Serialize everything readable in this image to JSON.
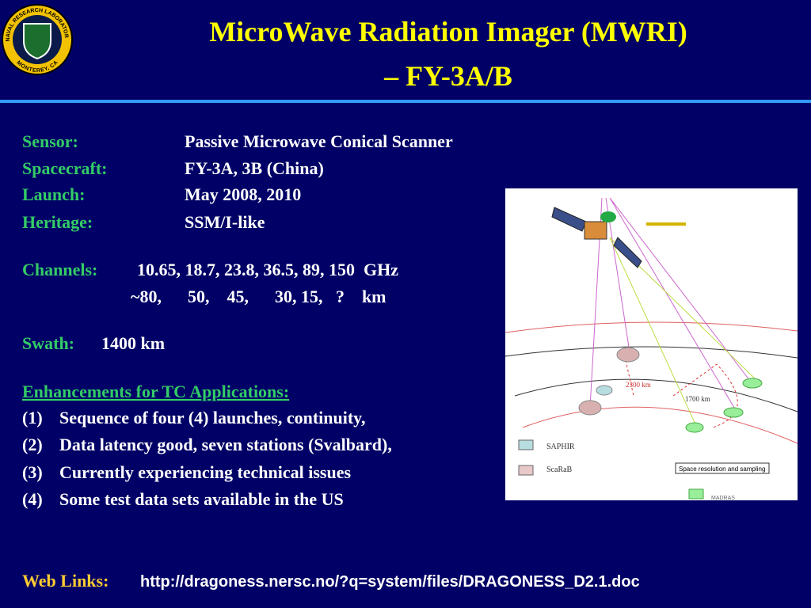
{
  "title": [
    "MicroWave Radiation Imager (MWRI)",
    "– FY-3A/B"
  ],
  "logo": {
    "top": "NAVAL RESEARCH LABORATORY",
    "bottom": "MONTEREY, CA"
  },
  "specs": [
    {
      "label": "Sensor:",
      "value": "Passive Microwave Conical Scanner"
    },
    {
      "label": "Spacecraft:",
      "value": "FY-3A, 3B (China)"
    },
    {
      "label": "Launch:",
      "value": "May 2008, 2010"
    },
    {
      "label": "Heritage:",
      "value": "SSM/I-like"
    }
  ],
  "channels": {
    "label": "Channels:",
    "frequencies": "10.65, 18.7, 23.8, 36.5, 89, 150  GHz",
    "resolutions": "~80,      50,    45,      30, 15,   ?    km"
  },
  "swath": {
    "label": "Swath:",
    "value": "1400 km"
  },
  "enhancements": {
    "heading": "Enhancements for TC Applications:",
    "items": [
      {
        "num": "(1)",
        "text": "Sequence of four (4) launches, continuity,"
      },
      {
        "num": "(2)",
        "text": "Data latency good, seven stations (Svalbard),"
      },
      {
        "num": "(3)",
        "text": "Currently experiencing technical issues"
      },
      {
        "num": "(4)",
        "text": "Some test data sets available in the US"
      }
    ]
  },
  "figure": {
    "distances": [
      "2300 km",
      "1700 km"
    ],
    "legend": [
      "SAPHIR",
      "ScaRaB",
      "MADRAS"
    ],
    "caption": "Space resolution and sampling"
  },
  "web_links": {
    "label": "Web Links:",
    "url": "http://dragoness.nersc.no/?q=system/files/DRAGONESS_D2.1.doc"
  }
}
